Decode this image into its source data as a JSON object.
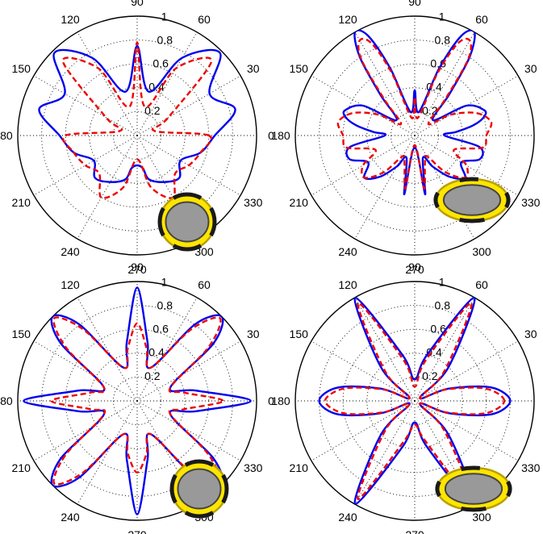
{
  "figure": {
    "colors": {
      "series_solid": "#0000ee",
      "series_dashed": "#ee0000",
      "inset_ring": "#ffe500",
      "inset_core": "#999999",
      "inset_segments": "#1a1a1a"
    }
  },
  "chart_data": [
    {
      "type": "polar",
      "grid": true,
      "rlim": [
        0,
        1
      ],
      "r_ticks": [
        "0.2",
        "0.4",
        "0.6",
        "0.8",
        "1"
      ],
      "theta_ticks": [
        "0",
        "30",
        "60",
        "90",
        "120",
        "150",
        "180",
        "210",
        "240",
        "270",
        "300",
        "330"
      ],
      "inset": {
        "shape": "circle"
      },
      "series": [
        {
          "style": "solid",
          "color": "#0000ee",
          "theta": [
            0,
            15,
            30,
            45,
            60,
            75,
            90,
            105,
            120,
            135,
            150,
            165,
            180,
            195,
            210,
            225,
            240,
            255,
            260,
            270,
            280,
            285,
            300,
            315,
            330,
            345,
            360
          ],
          "r": [
            0.65,
            0.85,
            0.7,
            0.98,
            0.75,
            0.38,
            0.75,
            0.38,
            0.75,
            0.98,
            0.7,
            0.85,
            0.65,
            0.55,
            0.42,
            0.5,
            0.45,
            0.38,
            0.28,
            0.25,
            0.28,
            0.38,
            0.45,
            0.5,
            0.42,
            0.55,
            0.65
          ]
        },
        {
          "style": "dashed",
          "color": "#ee0000",
          "theta": [
            0,
            15,
            30,
            45,
            60,
            75,
            90,
            105,
            120,
            135,
            150,
            165,
            180,
            195,
            210,
            225,
            240,
            255,
            270,
            285,
            300,
            315,
            330,
            345,
            360
          ],
          "r": [
            0.6,
            0.15,
            0.3,
            0.88,
            0.65,
            0.25,
            0.78,
            0.25,
            0.65,
            0.88,
            0.3,
            0.15,
            0.6,
            0.55,
            0.5,
            0.45,
            0.6,
            0.45,
            0.2,
            0.45,
            0.6,
            0.45,
            0.5,
            0.55,
            0.6
          ]
        }
      ]
    },
    {
      "type": "polar",
      "grid": true,
      "rlim": [
        0,
        1
      ],
      "r_ticks": [
        "0.2",
        "0.4",
        "0.6",
        "0.8",
        "1"
      ],
      "theta_ticks": [
        "0",
        "30",
        "60",
        "90",
        "120",
        "150",
        "180",
        "210",
        "240",
        "270",
        "300",
        "330"
      ],
      "inset": {
        "shape": "ellipse"
      },
      "series": [
        {
          "style": "solid",
          "color": "#0000ee",
          "theta": [
            0,
            5,
            10,
            15,
            20,
            30,
            40,
            50,
            55,
            60,
            65,
            70,
            80,
            90,
            100,
            110,
            115,
            120,
            125,
            130,
            140,
            150,
            160,
            165,
            170,
            175,
            180,
            190,
            200,
            210,
            220,
            230,
            240,
            250,
            260,
            270,
            280,
            290,
            300,
            310,
            320,
            330,
            340,
            350,
            360
          ],
          "r": [
            0.25,
            0.35,
            0.5,
            0.6,
            0.62,
            0.5,
            0.2,
            0.45,
            0.8,
            1.0,
            0.92,
            0.6,
            0.2,
            0.38,
            0.2,
            0.6,
            0.92,
            1.0,
            0.8,
            0.45,
            0.2,
            0.5,
            0.62,
            0.6,
            0.5,
            0.35,
            0.25,
            0.55,
            0.58,
            0.45,
            0.55,
            0.45,
            0.3,
            0.2,
            0.5,
            0.1,
            0.5,
            0.2,
            0.3,
            0.45,
            0.55,
            0.45,
            0.58,
            0.55,
            0.25
          ]
        },
        {
          "style": "dashed",
          "color": "#ee0000",
          "theta": [
            0,
            10,
            20,
            30,
            40,
            50,
            55,
            60,
            65,
            70,
            80,
            90,
            100,
            110,
            115,
            120,
            125,
            130,
            140,
            150,
            160,
            170,
            180,
            190,
            200,
            210,
            220,
            230,
            240,
            250,
            260,
            270,
            280,
            290,
            300,
            310,
            320,
            330,
            340,
            350,
            360
          ],
          "r": [
            0.6,
            0.65,
            0.55,
            0.35,
            0.15,
            0.4,
            0.78,
            0.92,
            0.85,
            0.55,
            0.15,
            0.32,
            0.15,
            0.55,
            0.85,
            0.92,
            0.78,
            0.4,
            0.15,
            0.35,
            0.55,
            0.65,
            0.6,
            0.58,
            0.35,
            0.5,
            0.55,
            0.4,
            0.2,
            0.25,
            0.45,
            0.08,
            0.45,
            0.25,
            0.2,
            0.4,
            0.55,
            0.5,
            0.35,
            0.58,
            0.6
          ]
        }
      ]
    },
    {
      "type": "polar",
      "grid": true,
      "rlim": [
        0,
        1
      ],
      "r_ticks": [
        "0.2",
        "0.4",
        "0.6",
        "0.8",
        "1"
      ],
      "theta_ticks": [
        "0",
        "30",
        "60",
        "90",
        "120",
        "150",
        "180",
        "210",
        "240",
        "270",
        "300",
        "330"
      ],
      "inset": {
        "shape": "circle"
      },
      "series": [
        {
          "style": "solid",
          "color": "#0000ee",
          "theta": [
            0,
            10,
            22,
            37,
            45,
            53,
            68,
            80,
            90,
            100,
            112,
            127,
            135,
            143,
            158,
            170,
            180,
            190,
            202,
            217,
            225,
            233,
            248,
            260,
            270,
            280,
            292,
            307,
            315,
            323,
            338,
            350,
            360
          ],
          "r": [
            0.95,
            0.5,
            0.3,
            0.8,
            1.0,
            0.8,
            0.3,
            0.5,
            0.95,
            0.5,
            0.3,
            0.8,
            1.0,
            0.8,
            0.3,
            0.5,
            0.95,
            0.5,
            0.3,
            0.8,
            1.0,
            0.8,
            0.3,
            0.5,
            0.95,
            0.5,
            0.3,
            0.8,
            1.0,
            0.8,
            0.3,
            0.5,
            0.95
          ]
        },
        {
          "style": "dashed",
          "color": "#ee0000",
          "theta": [
            0,
            10,
            22,
            37,
            45,
            53,
            68,
            80,
            90,
            100,
            112,
            127,
            135,
            143,
            158,
            170,
            180,
            190,
            202,
            217,
            225,
            233,
            248,
            260,
            270,
            280,
            292,
            307,
            315,
            323,
            338,
            350,
            360
          ],
          "r": [
            0.72,
            0.4,
            0.3,
            0.75,
            0.98,
            0.75,
            0.3,
            0.45,
            0.65,
            0.45,
            0.3,
            0.75,
            0.98,
            0.75,
            0.3,
            0.4,
            0.72,
            0.4,
            0.3,
            0.75,
            0.98,
            0.75,
            0.3,
            0.45,
            0.6,
            0.45,
            0.3,
            0.75,
            0.98,
            0.75,
            0.3,
            0.4,
            0.72
          ]
        }
      ]
    },
    {
      "type": "polar",
      "grid": true,
      "rlim": [
        0,
        1
      ],
      "r_ticks": [
        "0.2",
        "0.4",
        "0.6",
        "0.8",
        "1"
      ],
      "theta_ticks": [
        "0",
        "30",
        "60",
        "90",
        "120",
        "150",
        "180",
        "210",
        "240",
        "270",
        "300",
        "330"
      ],
      "inset": {
        "shape": "ellipse"
      },
      "series": [
        {
          "style": "solid",
          "color": "#0000ee",
          "theta": [
            0,
            10,
            20,
            30,
            45,
            60,
            75,
            90,
            105,
            120,
            135,
            150,
            160,
            170,
            180,
            190,
            200,
            210,
            225,
            240,
            255,
            270,
            285,
            300,
            315,
            330,
            340,
            350,
            360
          ],
          "r": [
            0.8,
            0.65,
            0.3,
            0.05,
            0.4,
            1.0,
            0.4,
            0.18,
            0.4,
            1.0,
            0.4,
            0.05,
            0.3,
            0.65,
            0.8,
            0.65,
            0.3,
            0.05,
            0.4,
            1.0,
            0.4,
            0.18,
            0.4,
            1.0,
            0.4,
            0.05,
            0.3,
            0.65,
            0.8
          ]
        },
        {
          "style": "dashed",
          "color": "#ee0000",
          "theta": [
            0,
            10,
            20,
            30,
            45,
            60,
            75,
            90,
            105,
            120,
            135,
            150,
            160,
            170,
            180,
            190,
            200,
            210,
            225,
            240,
            255,
            270,
            285,
            300,
            315,
            330,
            340,
            350,
            360
          ],
          "r": [
            0.75,
            0.6,
            0.28,
            0.05,
            0.35,
            0.95,
            0.35,
            0.12,
            0.35,
            0.95,
            0.35,
            0.05,
            0.28,
            0.6,
            0.75,
            0.6,
            0.28,
            0.05,
            0.35,
            0.95,
            0.35,
            0.2,
            0.35,
            0.95,
            0.35,
            0.05,
            0.28,
            0.6,
            0.75
          ]
        }
      ]
    }
  ]
}
